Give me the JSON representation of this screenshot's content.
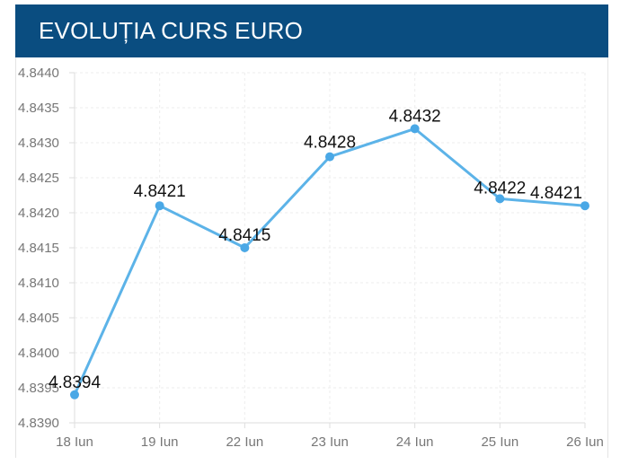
{
  "header": {
    "title": "EVOLUȚIA CURS EURO"
  },
  "colors": {
    "header_bg": "#0a4d80",
    "line": "#5cb3e8",
    "point": "#4aa8e6",
    "grid": "#eeeeee"
  },
  "chart_data": {
    "type": "line",
    "title": "EVOLUȚIA CURS EURO",
    "xlabel": "",
    "ylabel": "",
    "categories": [
      "18 Iun",
      "19 Iun",
      "22 Iun",
      "23 Iun",
      "24 Iun",
      "25 Iun",
      "26 Iun"
    ],
    "series": [
      {
        "values": [
          4.8394,
          4.8421,
          4.8415,
          4.8428,
          4.8432,
          4.8422,
          4.8421
        ],
        "labels": [
          "4.8394",
          "4.8421",
          "4.8415",
          "4.8428",
          "4.8432",
          "4.8422",
          "4.8421"
        ]
      }
    ],
    "ylim": [
      4.839,
      4.844
    ],
    "yticks": [
      "4.8390",
      "4.8395",
      "4.8400",
      "4.8405",
      "4.8410",
      "4.8415",
      "4.8420",
      "4.8425",
      "4.8430",
      "4.8435",
      "4.8440"
    ],
    "grid": true,
    "legend": "none"
  }
}
